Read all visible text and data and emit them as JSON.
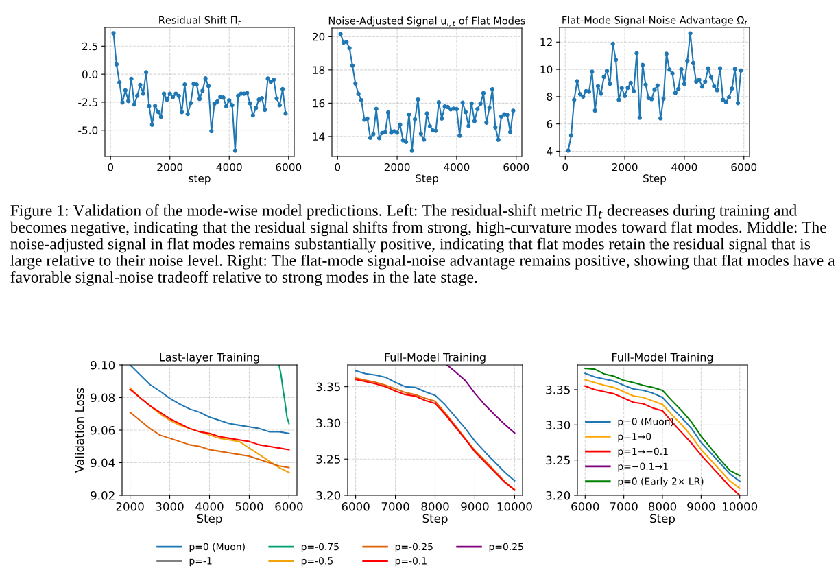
{
  "chart_data": [
    {
      "type": "line",
      "title": "Residual Shift Π$_{t}$",
      "xlabel": "step",
      "marker": "circle",
      "grid": true,
      "annotations": [
        "Figure 1: Validation of the mode-wise model predictions. Left: The residual-shift metric Π$_{t}$ decreases during training and becomes negative, indicating that the residual signal shifts from strong, high-curvature modes toward flat modes. Middle: The noise-adjusted signal in flat modes remains substantially positive, indicating that flat modes retain the residual signal that is large relative to their noise level. Right: The flat-mode signal-noise advantage remains positive, showing that flat modes have a favorable signal-noise tradeoff relative to strong modes in the late stage."
      ],
      "x": [
        100,
        200,
        300,
        400,
        500,
        600,
        700,
        800,
        900,
        1000,
        1100,
        1200,
        1300,
        1400,
        1500,
        1600,
        1700,
        1800,
        1900,
        2000,
        2100,
        2200,
        2300,
        2400,
        2500,
        2600,
        2700,
        2800,
        2900,
        3000,
        3100,
        3200,
        3300,
        3400,
        3500,
        3600,
        3700,
        3800,
        3900,
        4000,
        4100,
        4200,
        4300,
        4400,
        4500,
        4600,
        4700,
        4800,
        4900,
        5000,
        5100,
        5200,
        5300,
        5400,
        5500,
        5600,
        5700,
        5800,
        5900
      ],
      "xlim": [
        -190,
        6190
      ],
      "xticks": [
        0,
        2000,
        4000,
        6000
      ],
      "ylim": [
        -7.34,
        4.17
      ],
      "yticks": [
        {
          "value": -5,
          "label": "-5.0"
        },
        {
          "value": -2.5,
          "label": "-2.5"
        },
        {
          "value": 0,
          "label": "0.0"
        },
        {
          "value": 2.5,
          "label": "2.5"
        }
      ],
      "series": [
        {
          "color": "#1f77b4",
          "values": [
            3.65,
            0.88,
            -0.74,
            -2.52,
            -1.45,
            -2.4,
            -0.41,
            -2.7,
            -1.93,
            -0.96,
            -1.74,
            0.16,
            -2.85,
            -4.51,
            -2.83,
            -3.36,
            -3.81,
            -1.74,
            -2.27,
            -1.74,
            -2.05,
            -1.74,
            -1.95,
            -3.38,
            -0.92,
            -3.55,
            -2.58,
            -0.86,
            -0.92,
            -2.21,
            -1.48,
            -0.37,
            -1.05,
            -5.08,
            -2.64,
            -2.44,
            -2.03,
            -2.09,
            -2.87,
            -2.34,
            -2.77,
            -6.82,
            -1.93,
            -1.74,
            -1.74,
            -1.68,
            -2.6,
            -3.67,
            -3.01,
            -2.27,
            -2.15,
            -3.18,
            -0.39,
            -0.68,
            -0.49,
            -2.17,
            -2.77,
            -1.33,
            -3.5
          ]
        }
      ]
    },
    {
      "type": "line",
      "title": "Noise-Adjusted Signal u$_{i,t}$ of Flat Modes",
      "xlabel": "Step",
      "marker": "circle",
      "grid": true,
      "x": [
        100,
        200,
        300,
        400,
        500,
        600,
        700,
        800,
        900,
        1000,
        1100,
        1200,
        1300,
        1400,
        1500,
        1600,
        1700,
        1800,
        1900,
        2000,
        2100,
        2200,
        2300,
        2400,
        2500,
        2600,
        2700,
        2800,
        2900,
        3000,
        3100,
        3200,
        3300,
        3400,
        3500,
        3600,
        3700,
        3800,
        3900,
        4000,
        4100,
        4200,
        4300,
        4400,
        4500,
        4600,
        4700,
        4800,
        4900,
        5000,
        5100,
        5200,
        5300,
        5400,
        5500,
        5600,
        5700,
        5800,
        5900
      ],
      "xlim": [
        -190,
        6190
      ],
      "xticks": [
        0,
        2000,
        4000,
        6000
      ],
      "ylim": [
        12.8,
        20.51
      ],
      "yticks": [
        14,
        16,
        18,
        20
      ],
      "series": [
        {
          "color": "#1f77b4",
          "values": [
            20.16,
            19.64,
            19.68,
            19.31,
            18.25,
            17.18,
            16.56,
            16.18,
            15.01,
            15.07,
            13.92,
            14.14,
            15.66,
            13.9,
            14.21,
            14.26,
            15.44,
            14.23,
            14.31,
            14.23,
            14.71,
            13.77,
            13.67,
            15.32,
            13.15,
            15.04,
            16.22,
            14.15,
            13.81,
            15.38,
            14.62,
            14.36,
            14.34,
            16.05,
            15.08,
            15.8,
            15.77,
            15.63,
            15.67,
            15.65,
            14.05,
            16.03,
            15.47,
            14.63,
            15.98,
            14.92,
            15.65,
            15.97,
            16.6,
            14.83,
            15.73,
            16.84,
            14.54,
            13.8,
            15.2,
            15.33,
            15.3,
            14.26,
            15.55
          ]
        }
      ]
    },
    {
      "type": "line",
      "title": "Flat-Mode Signal-Noise Advantage Ω$_{t}$",
      "xlabel": "Step",
      "marker": "circle",
      "grid": true,
      "x": [
        100,
        200,
        300,
        400,
        500,
        600,
        700,
        800,
        900,
        1000,
        1100,
        1200,
        1300,
        1400,
        1500,
        1600,
        1700,
        1800,
        1900,
        2000,
        2100,
        2200,
        2300,
        2400,
        2500,
        2600,
        2700,
        2800,
        2900,
        3000,
        3100,
        3200,
        3300,
        3400,
        3500,
        3600,
        3700,
        3800,
        3900,
        4000,
        4100,
        4200,
        4300,
        4400,
        4500,
        4600,
        4700,
        4800,
        4900,
        5000,
        5100,
        5200,
        5300,
        5400,
        5500,
        5600,
        5700,
        5800,
        5900
      ],
      "xlim": [
        -190,
        6190
      ],
      "xticks": [
        0,
        2000,
        4000,
        6000
      ],
      "ylim": [
        3.62,
        13.07
      ],
      "yticks": [
        4,
        6,
        8,
        10,
        12
      ],
      "series": [
        {
          "color": "#1f77b4",
          "values": [
            4.05,
            5.16,
            7.77,
            9.13,
            8.18,
            8.0,
            8.4,
            8.37,
            9.83,
            6.99,
            8.77,
            8.22,
            9.45,
            9.88,
            8.94,
            11.87,
            10.7,
            7.77,
            8.62,
            8.05,
            8.64,
            9.01,
            8.4,
            11.18,
            6.46,
            10.32,
            8.87,
            7.9,
            7.82,
            8.51,
            8.82,
            6.41,
            7.85,
            11.14,
            9.98,
            9.7,
            8.27,
            8.56,
            10.0,
            8.93,
            10.62,
            12.64,
            10.46,
            9.1,
            9.23,
            8.73,
            9.1,
            10.07,
            9.43,
            8.76,
            8.47,
            10.07,
            7.77,
            7.6,
            7.95,
            8.59,
            10.03,
            7.52,
            9.92
          ]
        }
      ]
    },
    {
      "type": "line",
      "title": "Last-layer Training",
      "xlabel": "Step",
      "ylabel": "Validation Loss",
      "grid": true,
      "legend": "bottom",
      "x": [
        2000,
        2250,
        2500,
        2750,
        3000,
        3250,
        3500,
        3750,
        4000,
        4250,
        4500,
        4750,
        5000,
        5250,
        5500,
        5750,
        6000
      ],
      "xlim": [
        1800,
        6200
      ],
      "xticks": [
        2000,
        3000,
        4000,
        5000,
        6000
      ],
      "ylim": [
        9.02,
        9.1
      ],
      "yticks": [
        9.02,
        9.04,
        9.06,
        9.08,
        {
          "value": 9.1,
          "label": "9.10"
        }
      ],
      "series": [
        {
          "name": "p=0 (Muon)",
          "color": "#1f77b4",
          "values": [
            9.1,
            9.094,
            9.088,
            9.084,
            9.0795,
            9.076,
            9.073,
            9.071,
            9.068,
            9.066,
            9.064,
            9.063,
            9.062,
            9.061,
            9.059,
            9.059,
            9.058
          ]
        },
        {
          "name": "p=-1",
          "color": "#808080",
          "values": [
            null,
            null,
            null,
            null,
            null,
            null,
            null,
            null,
            null,
            null,
            null,
            null,
            null,
            null,
            null,
            null,
            null
          ]
        },
        {
          "name": "p=-0.75",
          "color": "#009e73",
          "x": [
            5750,
            5800,
            5850,
            5900,
            5950,
            6000
          ],
          "values": [
            9.1,
            9.094,
            9.085,
            9.077,
            9.068,
            9.064
          ]
        },
        {
          "name": "p=-0.5",
          "color": "#f0a30a",
          "values": [
            9.086,
            9.08,
            9.075,
            9.07,
            9.066,
            9.063,
            9.061,
            9.059,
            9.057,
            9.055,
            9.054,
            9.053,
            9.049,
            9.045,
            9.041,
            9.037,
            9.034
          ]
        },
        {
          "name": "p=-0.25",
          "color": "#e0640a",
          "values": [
            9.071,
            9.066,
            9.061,
            9.057,
            9.055,
            9.053,
            9.051,
            9.05,
            9.048,
            9.047,
            9.046,
            9.045,
            9.044,
            9.042,
            9.04,
            9.038,
            9.037
          ]
        },
        {
          "name": "p=-0.1",
          "color": "#ff0000",
          "values": [
            9.085,
            9.08,
            9.075,
            9.071,
            9.067,
            9.064,
            9.061,
            9.059,
            9.058,
            9.056,
            9.055,
            9.054,
            9.053,
            9.051,
            9.05,
            9.049,
            9.048
          ]
        },
        {
          "name": "p=0.25",
          "color": "#800080",
          "values": [
            null,
            null,
            null,
            null,
            null,
            null,
            null,
            null,
            null,
            null,
            null,
            null,
            null,
            null,
            null,
            null,
            null
          ]
        }
      ]
    },
    {
      "type": "line",
      "title": "Full-Model Training",
      "xlabel": "Step",
      "grid": true,
      "x": [
        6000,
        6250,
        6500,
        6750,
        7000,
        7250,
        7500,
        7750,
        8000,
        8250,
        8500,
        8750,
        9000,
        9250,
        9500,
        9750,
        10000
      ],
      "xlim": [
        5800,
        10200
      ],
      "xticks": [
        6000,
        7000,
        8000,
        9000,
        10000
      ],
      "ylim": [
        3.2,
        3.38
      ],
      "yticks": [
        {
          "value": 3.2,
          "label": "3.20"
        },
        3.25,
        {
          "value": 3.3,
          "label": "3.30"
        },
        3.35
      ],
      "series": [
        {
          "color": "#1f77b4",
          "values": [
            3.372,
            3.368,
            3.366,
            3.363,
            3.356,
            3.35,
            3.349,
            3.343,
            3.338,
            3.325,
            3.309,
            3.293,
            3.275,
            3.26,
            3.246,
            3.232,
            3.22
          ]
        },
        {
          "color": "#e0640a",
          "values": [
            3.362,
            3.359,
            3.356,
            3.352,
            3.347,
            3.342,
            3.339,
            3.334,
            3.33,
            3.314,
            3.297,
            3.279,
            3.262,
            3.248,
            3.234,
            3.219,
            3.208
          ]
        },
        {
          "color": "#ff0000",
          "values": [
            3.36,
            3.357,
            3.354,
            3.35,
            3.344,
            3.339,
            3.337,
            3.331,
            3.327,
            3.312,
            3.295,
            3.278,
            3.26,
            3.246,
            3.232,
            3.218,
            3.207
          ]
        },
        {
          "color": "#800080",
          "x": [
            8300,
            8500,
            8750,
            9000,
            9250,
            9500,
            9750,
            10000
          ],
          "values": [
            3.38,
            3.371,
            3.359,
            3.341,
            3.325,
            3.311,
            3.298,
            3.286
          ]
        }
      ]
    },
    {
      "type": "line",
      "title": "Full-Model Training",
      "xlabel": "Step",
      "grid": true,
      "legend": "lower left",
      "x": [
        6000,
        6250,
        6500,
        6750,
        7000,
        7250,
        7500,
        7750,
        8000,
        8250,
        8500,
        8750,
        9000,
        9250,
        9500,
        9750,
        10000
      ],
      "xlim": [
        5800,
        10200
      ],
      "xticks": [
        6000,
        7000,
        8000,
        9000,
        10000
      ],
      "ylim": [
        3.2,
        3.385
      ],
      "yticks": [
        {
          "value": 3.2,
          "label": "3.20"
        },
        3.25,
        {
          "value": 3.3,
          "label": "3.30"
        },
        3.35
      ],
      "series": [
        {
          "name": "p=0 (Muon)",
          "color": "#1f77b4",
          "values": [
            3.373,
            3.368,
            3.365,
            3.362,
            3.356,
            3.351,
            3.349,
            3.345,
            3.339,
            3.324,
            3.31,
            3.295,
            3.275,
            3.26,
            3.245,
            3.23,
            3.22
          ]
        },
        {
          "name": "p=1→0",
          "color": "#ffa500",
          "values": [
            3.364,
            3.36,
            3.356,
            3.353,
            3.347,
            3.341,
            3.339,
            3.334,
            3.329,
            3.314,
            3.3,
            3.284,
            3.265,
            3.25,
            3.235,
            3.22,
            3.21
          ]
        },
        {
          "name": "p=1→−0.1",
          "color": "#ff0000",
          "values": [
            3.355,
            3.35,
            3.347,
            3.344,
            3.338,
            3.332,
            3.33,
            3.324,
            3.32,
            3.304,
            3.289,
            3.274,
            3.257,
            3.242,
            3.227,
            3.212,
            3.2
          ]
        },
        {
          "name": "p=−0.1→1",
          "color": "#800080",
          "values": [
            null,
            null,
            null,
            null,
            null,
            null,
            null,
            null,
            null,
            null,
            null,
            null,
            null,
            null,
            null,
            null,
            null
          ]
        },
        {
          "name": "p=0 (Early 2× LR)",
          "color": "#008000",
          "values": [
            3.38,
            3.379,
            3.372,
            3.369,
            3.363,
            3.36,
            3.356,
            3.353,
            3.349,
            3.334,
            3.32,
            3.304,
            3.284,
            3.267,
            3.25,
            3.235,
            3.228
          ]
        }
      ]
    }
  ]
}
